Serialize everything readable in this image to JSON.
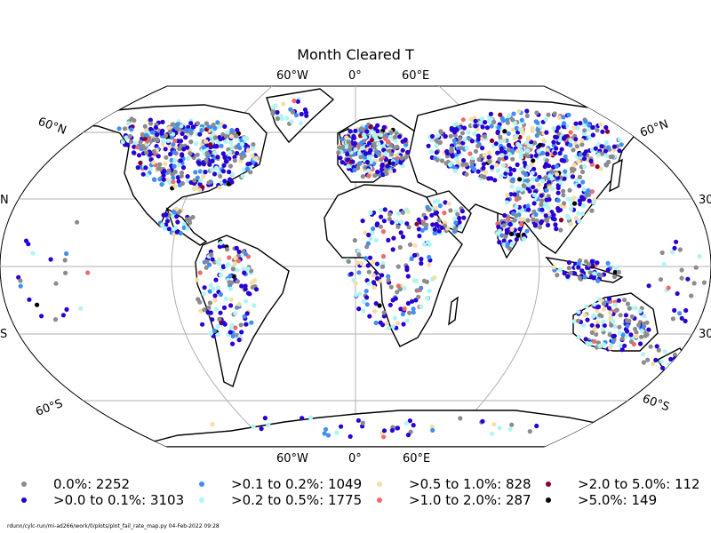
{
  "title": "Month Cleared T",
  "graticule_labels": {
    "top": [
      "60°W",
      "0°",
      "60°E"
    ],
    "bottom": [
      "60°W",
      "0°",
      "60°E"
    ],
    "left": [
      "60°N",
      "N",
      "S",
      "60°S"
    ],
    "right": [
      "60°N",
      "30",
      "30",
      "60°S"
    ]
  },
  "legend": [
    {
      "label": "0.0%: 2252",
      "color": "#8c8c8c"
    },
    {
      "label": ">0.0 to 0.1%: 3103",
      "color": "#2a00d4"
    },
    {
      "label": ">0.1 to 0.2%: 1049",
      "color": "#3f8ff5"
    },
    {
      "label": ">0.2 to 0.5%: 1775",
      "color": "#aef5f5"
    },
    {
      "label": ">0.5 to 1.0%: 828",
      "color": "#f7dca6"
    },
    {
      "label": ">1.0 to 2.0%: 287",
      "color": "#f06a6a"
    },
    {
      "label": ">2.0 to 5.0%: 112",
      "color": "#8b0023"
    },
    {
      "label": ">5.0%: 149",
      "color": "#000000"
    }
  ],
  "footer": "rdunn/cylc-run/mi-ad266/work/0/plots/plot_fail_rate_map.py   04-Feb-2022 09:28",
  "colors": {
    "coastline": "#000000",
    "graticule": "#b0b0b0",
    "background": "#ffffff"
  }
}
